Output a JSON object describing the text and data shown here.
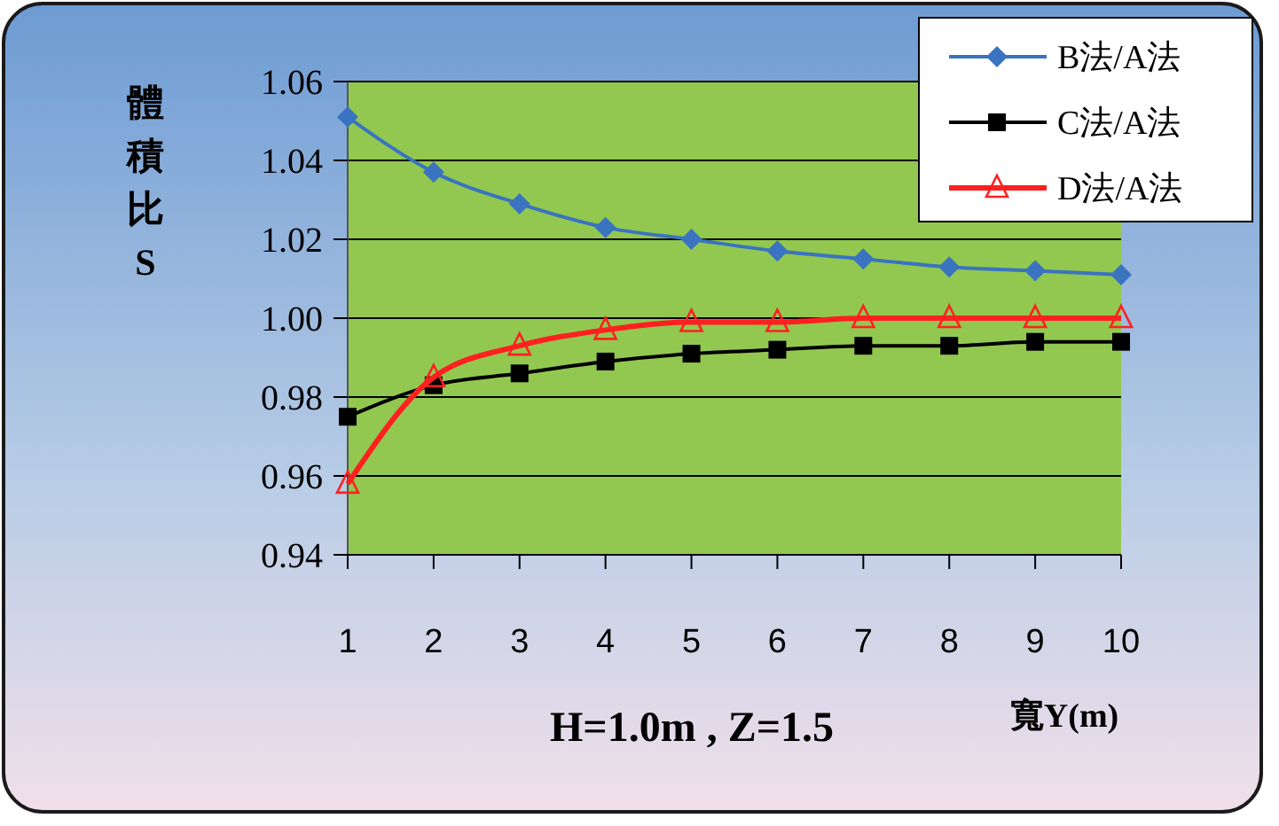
{
  "chart_data": {
    "type": "line",
    "ylabel": "體積比S",
    "xlabel": "寬Y(m)",
    "annotations": [
      "H=1.0m , Z=1.5"
    ],
    "categories": [
      "1",
      "2",
      "3",
      "4",
      "5",
      "6",
      "7",
      "8",
      "9",
      "10"
    ],
    "ylim": [
      0.94,
      1.06
    ],
    "yticks": [
      {
        "value": 0.94,
        "label": "0.94"
      },
      {
        "value": 0.96,
        "label": "0.96"
      },
      {
        "value": 0.98,
        "label": "0.98"
      },
      {
        "value": 1.0,
        "label": "1.00"
      },
      {
        "value": 1.02,
        "label": "1.02"
      },
      {
        "value": 1.04,
        "label": "1.04"
      },
      {
        "value": 1.06,
        "label": "1.06"
      }
    ],
    "grid": "y",
    "legend": "top right",
    "line_style": "solid",
    "series": [
      {
        "name": "B法/A法",
        "color": "#3a73c0",
        "marker": "diamond",
        "values": [
          1.051,
          1.037,
          1.029,
          1.023,
          1.02,
          1.017,
          1.015,
          1.013,
          1.012,
          1.011
        ]
      },
      {
        "name": "C法/A法",
        "color": "#000000",
        "marker": "square",
        "values": [
          0.975,
          0.983,
          0.986,
          0.989,
          0.991,
          0.992,
          0.993,
          0.993,
          0.994,
          0.994
        ]
      },
      {
        "name": "D法/A法",
        "color": "#ff2020",
        "marker": "triangle",
        "values": [
          0.958,
          0.985,
          0.993,
          0.997,
          0.999,
          0.999,
          1.0,
          1.0,
          1.0,
          1.0
        ]
      }
    ]
  }
}
